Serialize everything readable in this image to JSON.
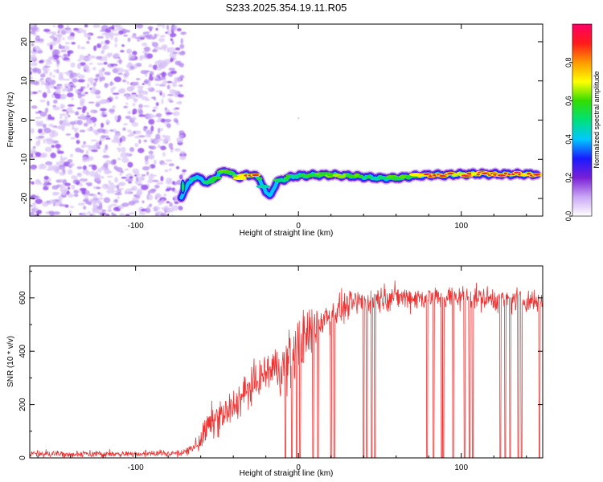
{
  "figure": {
    "title": "S233.2025.354.19.11.R05",
    "colors": {
      "snr_line": "#ee3333",
      "axis": "#000000",
      "noise": "#9a55ee",
      "ridge_core": "#e8283a"
    }
  },
  "chart_data": [
    {
      "type": "heatmap",
      "name": "spectrogram",
      "title": "S233.2025.354.19.11.R05",
      "xlabel": "Height of straight line (km)",
      "ylabel": "Frequency (Hz)",
      "xlim": [
        -165,
        150
      ],
      "ylim": [
        -24.5,
        24.5
      ],
      "xticks": [
        -100,
        0,
        100
      ],
      "xtick_labels": [
        "-100",
        "0",
        "100"
      ],
      "yticks": [
        20,
        10,
        0,
        -10,
        -20
      ],
      "ytick_labels": [
        "20",
        "10",
        "0",
        "-10",
        "-20"
      ],
      "noise_region": {
        "x_from": -165,
        "x_to": -72,
        "amplitude": "low-to-moderate"
      },
      "ridge": {
        "description": "dominant spectral peak frequency vs height",
        "x": [
          -72,
          -70,
          -67,
          -64,
          -60,
          -56,
          -52,
          -48,
          -44,
          -40,
          -36,
          -32,
          -28,
          -24,
          -22,
          -20,
          -18,
          -16,
          -14,
          -12,
          -8,
          -4,
          0,
          10,
          20,
          30,
          40,
          50,
          60,
          70,
          80,
          90,
          100,
          110,
          120,
          130,
          140,
          147
        ],
        "frequency_hz": [
          -19.5,
          -18,
          -16,
          -14.5,
          -15,
          -16,
          -15,
          -13.5,
          -13,
          -14,
          -14.5,
          -14,
          -14,
          -15,
          -16.5,
          -18.5,
          -19.5,
          -18,
          -16.5,
          -15.5,
          -15,
          -14.5,
          -14.2,
          -14,
          -14,
          -14.2,
          -14.5,
          -14.8,
          -14.8,
          -14.3,
          -14,
          -14,
          -13.8,
          -13.7,
          -13.8,
          -13.8,
          -13.8,
          -13.8
        ],
        "amplitude": [
          0.35,
          0.4,
          0.45,
          0.5,
          0.45,
          0.5,
          0.55,
          0.6,
          0.55,
          0.6,
          0.7,
          0.75,
          0.9,
          0.6,
          0.5,
          0.4,
          0.35,
          0.35,
          0.45,
          0.55,
          0.6,
          0.55,
          0.5,
          0.6,
          0.65,
          0.6,
          0.55,
          0.5,
          0.6,
          0.65,
          0.8,
          0.85,
          0.75,
          0.8,
          0.95,
          0.95,
          0.85,
          0.8
        ]
      }
    },
    {
      "type": "colorbar",
      "name": "amplitude-colorbar",
      "label": "Normalized spectral amplitude",
      "range": [
        0.0,
        1.0
      ],
      "ticks": [
        0.0,
        0.2,
        0.4,
        0.6,
        0.8
      ],
      "tick_labels": [
        "0.0",
        "0.2",
        "0.4",
        "0.6",
        "0.8"
      ],
      "colormap": [
        "#ffffff",
        "#c9a7f5",
        "#7a1fd6",
        "#1a1aff",
        "#00c8ff",
        "#00e07a",
        "#33dd00",
        "#ffff00",
        "#ff9900",
        "#ff1a1a",
        "#ff0066"
      ]
    },
    {
      "type": "line",
      "name": "snr",
      "xlabel": "Height of straight line (km)",
      "ylabel": "SNR (10 * v/v)",
      "xlim": [
        -165,
        150
      ],
      "ylim": [
        0,
        720
      ],
      "xticks": [
        -100,
        0,
        100
      ],
      "xtick_labels": [
        "-100",
        "0",
        "100"
      ],
      "yticks": [
        0,
        200,
        400,
        600
      ],
      "ytick_labels": [
        "0",
        "200",
        "400",
        "600"
      ],
      "envelope": {
        "x": [
          -165,
          -100,
          -70,
          -62,
          -55,
          -50,
          -45,
          -40,
          -35,
          -30,
          -25,
          -20,
          -15,
          -10,
          -5,
          0,
          5,
          10,
          20,
          30,
          40,
          50,
          60,
          70,
          80,
          90,
          100,
          110,
          120,
          130,
          140,
          150
        ],
        "snr": [
          15,
          15,
          18,
          50,
          120,
          150,
          160,
          190,
          230,
          260,
          290,
          320,
          340,
          330,
          380,
          420,
          450,
          500,
          540,
          570,
          590,
          600,
          605,
          600,
          600,
          600,
          605,
          600,
          595,
          595,
          590,
          585
        ],
        "noise_amplitude": [
          8,
          8,
          8,
          30,
          55,
          60,
          60,
          60,
          60,
          60,
          60,
          60,
          70,
          90,
          100,
          110,
          90,
          80,
          60,
          45,
          45,
          45,
          40,
          40,
          40,
          40,
          40,
          40,
          40,
          40,
          40,
          40
        ]
      },
      "dropouts_x": [
        -8,
        -4,
        -1,
        1,
        9,
        12,
        20,
        22,
        40,
        42,
        45,
        47,
        79,
        83,
        88,
        89,
        95,
        102,
        105,
        107,
        124,
        127,
        130,
        135,
        137,
        148
      ]
    }
  ]
}
